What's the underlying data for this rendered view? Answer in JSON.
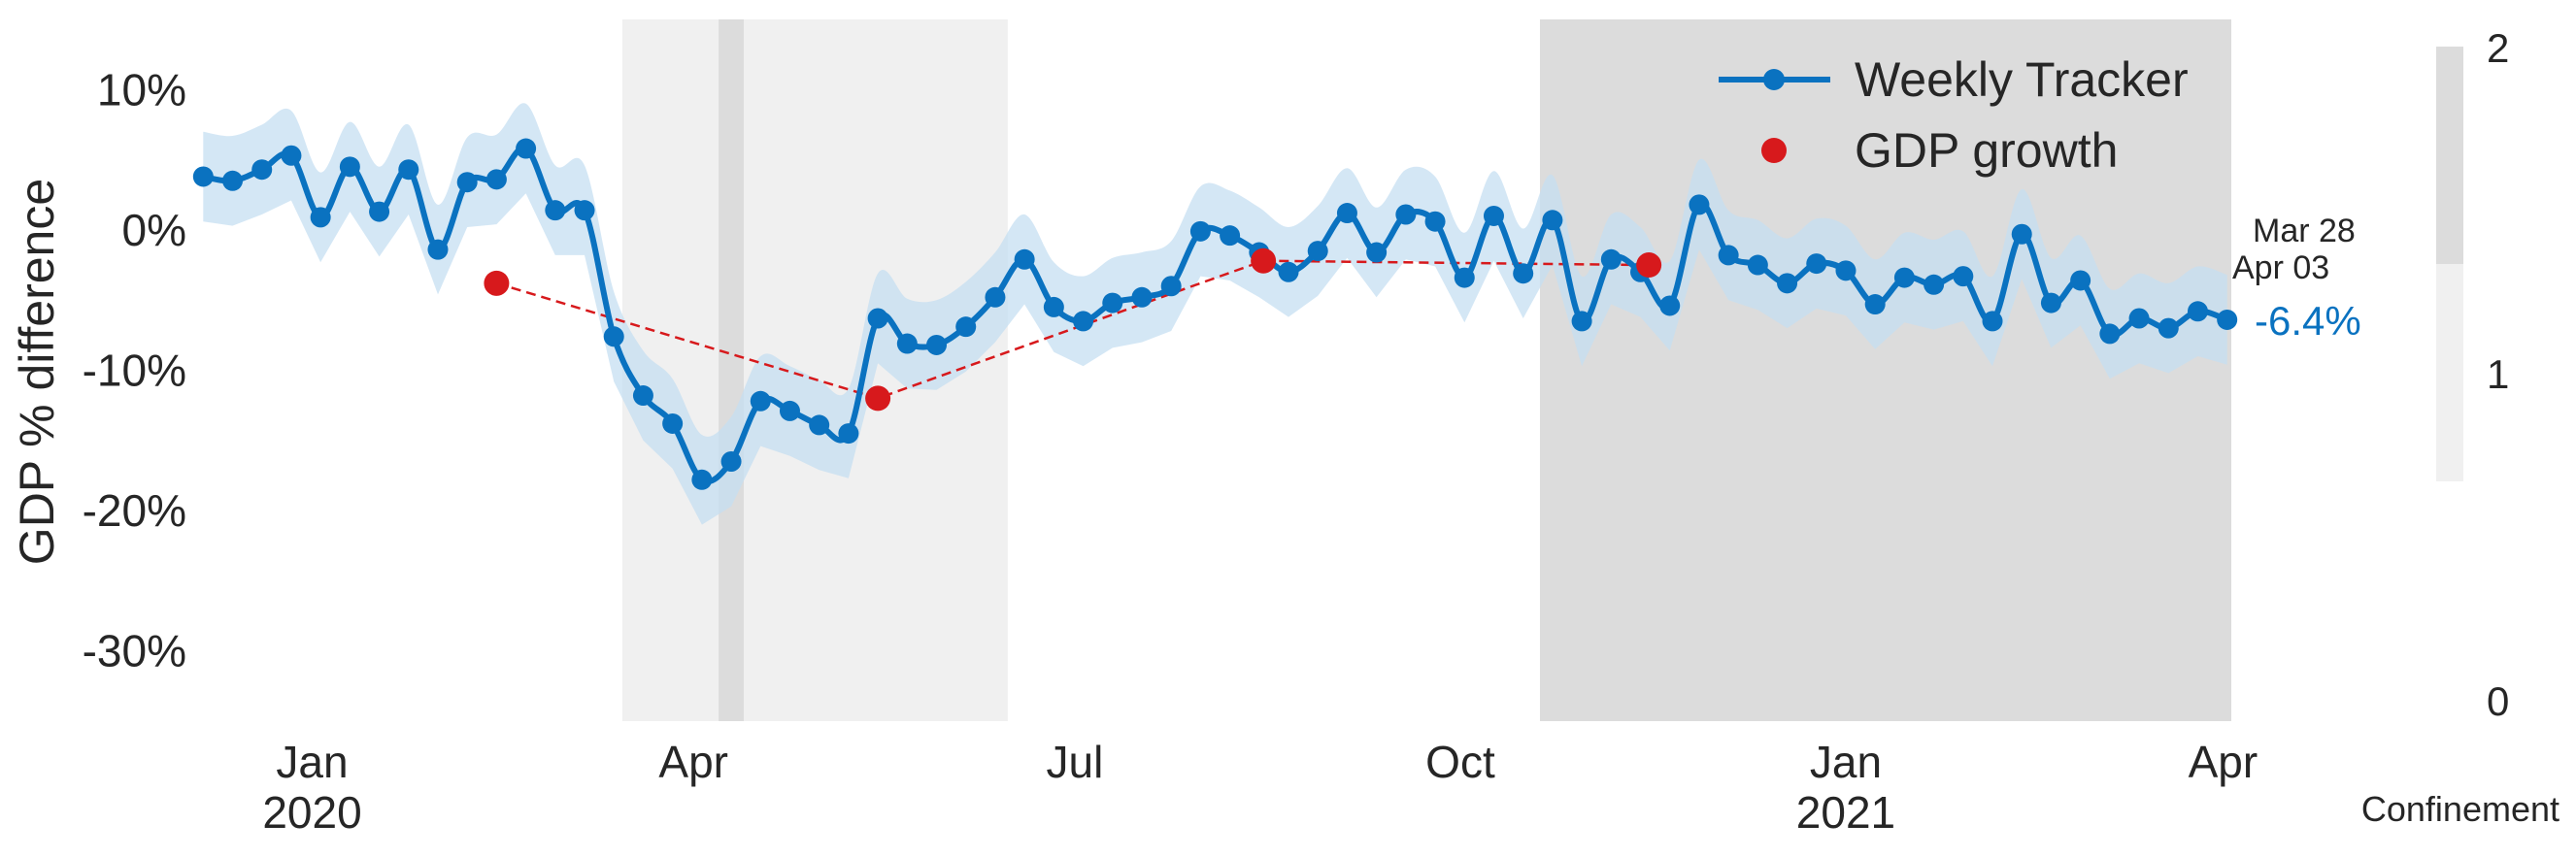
{
  "chart_data": {
    "type": "line",
    "ylabel": "GDP % difference",
    "ylim": [
      -35,
      15
    ],
    "xlim": [
      "2019-12-05",
      "2021-04-03"
    ],
    "y_ticks": [
      {
        "value": 10,
        "label": "10%"
      },
      {
        "value": 0,
        "label": "0%"
      },
      {
        "value": -10,
        "label": "-10%"
      },
      {
        "value": -20,
        "label": "-20%"
      },
      {
        "value": -30,
        "label": "-30%"
      }
    ],
    "x_ticks": [
      {
        "date": "2020-01-01",
        "label": "Jan",
        "year": "2020"
      },
      {
        "date": "2020-04-01",
        "label": "Apr",
        "year": ""
      },
      {
        "date": "2020-07-01",
        "label": "Jul",
        "year": ""
      },
      {
        "date": "2020-10-01",
        "label": "Oct",
        "year": ""
      },
      {
        "date": "2021-01-01",
        "label": "Jan",
        "year": "2021"
      },
      {
        "date": "2021-04-01",
        "label": "Apr",
        "year": ""
      }
    ],
    "grid": false,
    "legend_position": "top-right",
    "series": [
      {
        "name": "Weekly Tracker",
        "color": "#0a72c0",
        "band_color": "#c6dff1",
        "start_date": "2019-12-06",
        "step_days": 7,
        "values": [
          3.8,
          3.5,
          4.3,
          5.3,
          0.9,
          4.5,
          1.3,
          4.3,
          -1.4,
          3.4,
          3.6,
          5.8,
          1.4,
          1.4,
          -7.6,
          -11.8,
          -13.8,
          -17.8,
          -16.5,
          -12.2,
          -12.9,
          -13.9,
          -14.5,
          -6.3,
          -8.1,
          -8.2,
          -6.9,
          -4.8,
          -2.1,
          -5.5,
          -6.5,
          -5.2,
          -4.8,
          -4.0,
          -0.1,
          -0.4,
          -1.6,
          -3.0,
          -1.5,
          1.2,
          -1.6,
          1.1,
          0.6,
          -3.4,
          1.0,
          -3.1,
          0.7,
          -6.5,
          -2.1,
          -3.0,
          -5.4,
          1.8,
          -1.8,
          -2.5,
          -3.8,
          -2.4,
          -2.9,
          -5.3,
          -3.4,
          -3.9,
          -3.3,
          -6.5,
          -0.3,
          -5.2,
          -3.6,
          -7.4,
          -6.3,
          -7.0,
          -5.8,
          -6.4
        ],
        "band_half_width": 3.2
      },
      {
        "name": "GDP growth",
        "color": "#d7191c",
        "points": [
          {
            "date": "2020-02-14",
            "value": -3.8
          },
          {
            "date": "2020-05-15",
            "value": -12.0
          },
          {
            "date": "2020-08-15",
            "value": -2.2
          },
          {
            "date": "2020-11-15",
            "value": -2.5
          }
        ]
      }
    ],
    "confinement": {
      "label": "Confinement",
      "ticks": [
        "0",
        "1",
        "2"
      ],
      "levels": [
        {
          "level": 1,
          "color": "#f0f0f0"
        },
        {
          "level": 2,
          "color": "#dcdcdc"
        }
      ],
      "periods": [
        {
          "start": "2020-03-15",
          "end": "2020-06-15",
          "level": 1
        },
        {
          "start": "2020-04-07",
          "end": "2020-04-13",
          "level": 2
        },
        {
          "start": "2020-10-20",
          "end": "2021-04-03",
          "level": 2
        }
      ]
    },
    "annotations": {
      "date_range_top": "Mar 28",
      "date_range_bottom": "Apr 03",
      "last_value": "-6.4%"
    }
  }
}
